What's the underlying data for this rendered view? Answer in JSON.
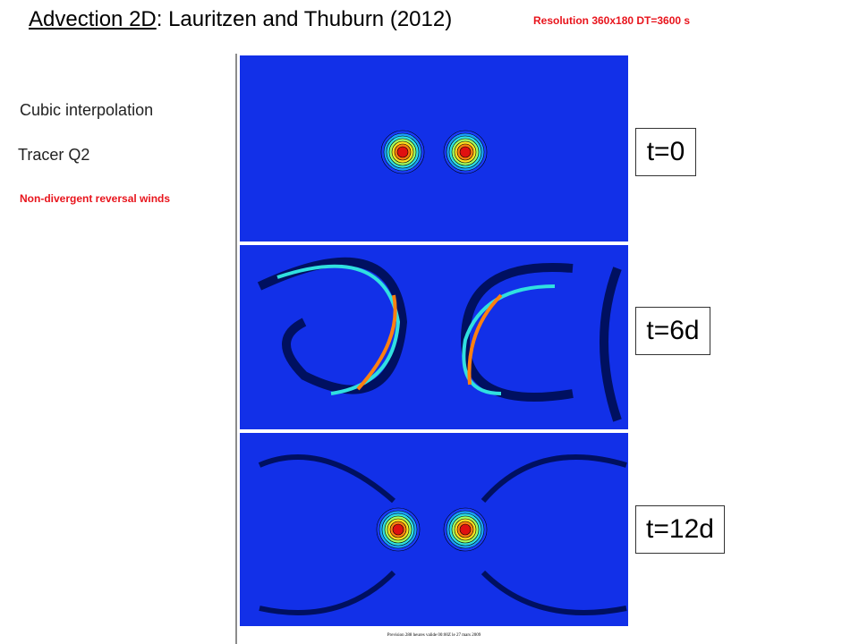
{
  "header": {
    "title_underlined": "Advection 2D",
    "title_rest": ": Lauritzen and Thuburn (2012)",
    "resolution": "Resolution  360x180 DT=3600 s"
  },
  "sidebar": {
    "method": "Cubic interpolation",
    "tracer": "Tracer Q2",
    "winds": "Non-divergent reversal winds"
  },
  "panels": [
    {
      "label": "t=0"
    },
    {
      "label": "t=6d"
    },
    {
      "label": "t=12d"
    }
  ],
  "footer": "Prevision 288 heures valide 00:00Z le 27 mars 2009"
}
